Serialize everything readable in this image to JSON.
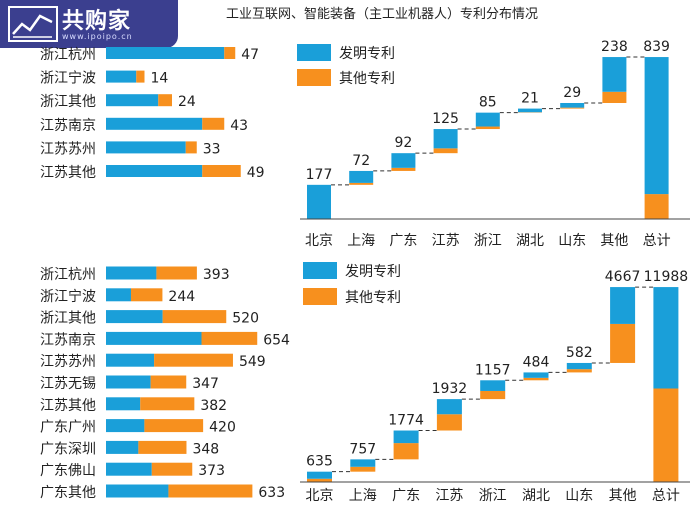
{
  "header": {
    "title": "工业互联网、智能装备（主工业机器人）专利分布情况",
    "logo_text": "共购家",
    "logo_sub": "www.ipoipo.cn"
  },
  "colors": {
    "invention": "#1a9fd9",
    "other": "#f7901e"
  },
  "chart_data": [
    {
      "type": "bar",
      "orientation": "horizontal",
      "stacked": true,
      "categories": [
        "浙江杭州",
        "浙江宁波",
        "浙江其他",
        "江苏南京",
        "江苏苏州",
        "江苏其他"
      ],
      "series": [
        {
          "name": "发明专利",
          "values": [
            43,
            11,
            19,
            35,
            29,
            35
          ]
        },
        {
          "name": "其他专利",
          "values": [
            4,
            3,
            5,
            8,
            4,
            14
          ]
        }
      ],
      "totals": [
        47,
        14,
        24,
        43,
        33,
        49
      ],
      "xlim": [
        0,
        60
      ]
    },
    {
      "type": "waterfall",
      "stacked": true,
      "categories": [
        "北京",
        "上海",
        "广东",
        "江苏",
        "浙江",
        "湖北",
        "山东",
        "其他",
        "总计"
      ],
      "series": [
        {
          "name": "发明专利",
          "values": [
            177,
            62,
            76,
            100,
            72,
            19,
            24,
            180,
            710
          ]
        },
        {
          "name": "其他专利",
          "values": [
            0,
            10,
            16,
            25,
            13,
            2,
            5,
            58,
            129
          ]
        }
      ],
      "totals": [
        177,
        72,
        92,
        125,
        85,
        21,
        29,
        238,
        839
      ],
      "legend": [
        "发明专利",
        "其他专利"
      ],
      "legend_position": "top-left",
      "ylim": [
        0,
        860
      ]
    },
    {
      "type": "bar",
      "orientation": "horizontal",
      "stacked": true,
      "categories": [
        "浙江杭州",
        "浙江宁波",
        "浙江其他",
        "江苏南京",
        "江苏苏州",
        "江苏无锡",
        "江苏其他",
        "广东广州",
        "广东深圳",
        "广东佛山",
        "广东其他"
      ],
      "series": [
        {
          "name": "发明专利",
          "values": [
            218,
            108,
            245,
            413,
            208,
            193,
            148,
            166,
            140,
            198,
            270
          ]
        },
        {
          "name": "其他专利",
          "values": [
            175,
            136,
            275,
            241,
            341,
            154,
            234,
            254,
            208,
            175,
            363
          ]
        }
      ],
      "totals": [
        393,
        244,
        520,
        654,
        549,
        347,
        382,
        420,
        348,
        373,
        633
      ],
      "xlim": [
        0,
        800
      ]
    },
    {
      "type": "waterfall",
      "stacked": true,
      "categories": [
        "北京",
        "上海",
        "广东",
        "江苏",
        "浙江",
        "湖北",
        "山东",
        "其他",
        "总计"
      ],
      "series": [
        {
          "name": "发明专利",
          "values": [
            435,
            457,
            774,
            932,
            657,
            334,
            382,
            2267,
            6238
          ]
        },
        {
          "name": "其他专利",
          "values": [
            200,
            300,
            1000,
            1000,
            500,
            150,
            200,
            2400,
            5750
          ]
        }
      ],
      "totals": [
        635,
        757,
        1774,
        1932,
        1157,
        484,
        582,
        4667,
        11988
      ],
      "legend": [
        "发明专利",
        "其他专利"
      ],
      "legend_position": "top-left",
      "ylim": [
        0,
        12300
      ]
    }
  ]
}
